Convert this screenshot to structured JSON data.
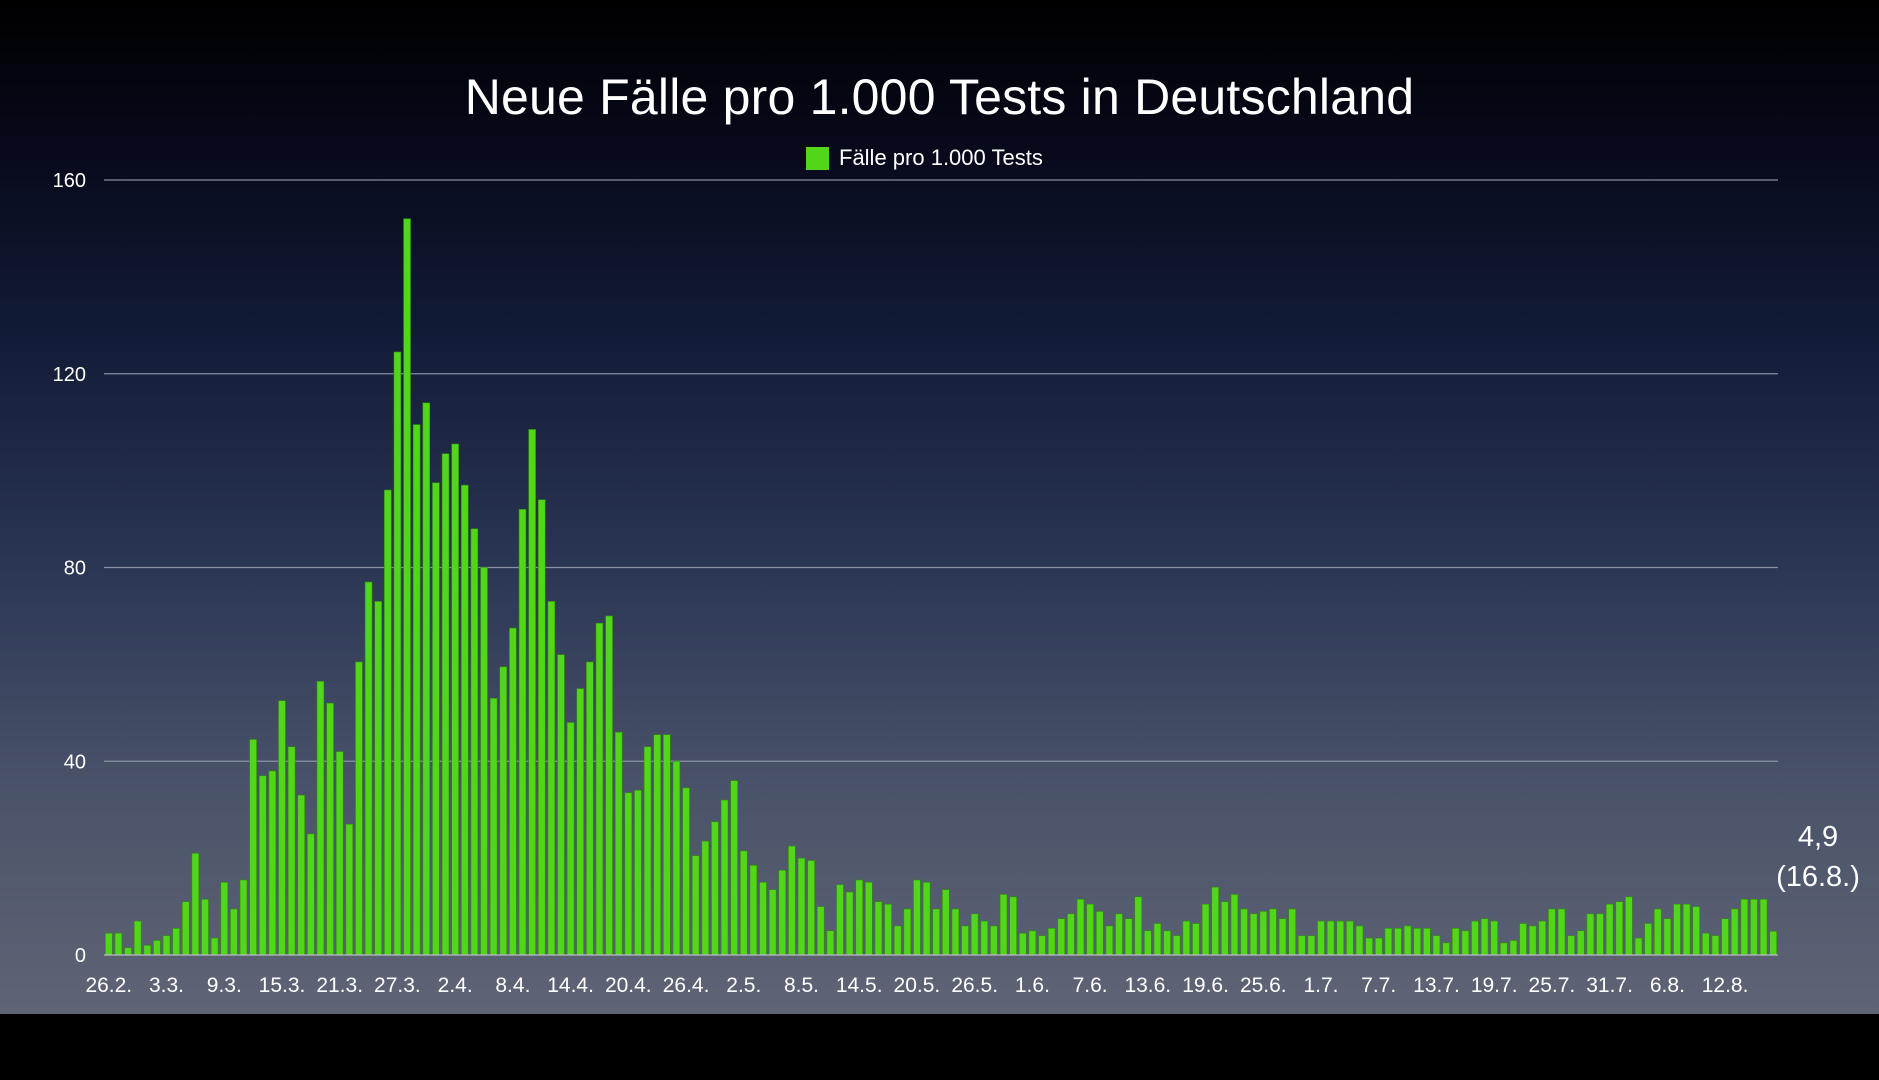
{
  "chart_data": {
    "type": "bar",
    "title": "Neue Fälle pro 1.000 Tests in Deutschland",
    "xlabel": "",
    "ylabel": "",
    "ylim": [
      0,
      160
    ],
    "yticks": [
      "0",
      "40",
      "80",
      "120",
      "160"
    ],
    "grid": true,
    "legend_position": "top-center",
    "bar_color": "#52d619",
    "tick_labels": [
      "26.2.",
      "3.3.",
      "9.3.",
      "15.3.",
      "21.3.",
      "27.3.",
      "2.4.",
      "8.4.",
      "14.4.",
      "20.4.",
      "26.4.",
      "2.5.",
      "8.5.",
      "14.5.",
      "20.5.",
      "26.5.",
      "1.6.",
      "7.6.",
      "13.6.",
      "19.6.",
      "25.6.",
      "1.7.",
      "7.7.",
      "13.7.",
      "19.7.",
      "25.7.",
      "31.7.",
      "6.8.",
      "12.8."
    ],
    "series": [
      {
        "name": "Fälle pro 1.000 Tests",
        "values": [
          4.5,
          4.5,
          1.5,
          7,
          2,
          3,
          4,
          5.5,
          11,
          21,
          11.5,
          3.5,
          15,
          9.5,
          15.5,
          44.5,
          37,
          38,
          52.5,
          43,
          33,
          25,
          56.5,
          52,
          42,
          27,
          60.5,
          77,
          73,
          96,
          124.5,
          152,
          109.5,
          114,
          97.5,
          103.5,
          105.5,
          97,
          88,
          80,
          53,
          59.5,
          67.5,
          92,
          108.5,
          94,
          73,
          62,
          48,
          55,
          60.5,
          68.5,
          70,
          46,
          33.5,
          34,
          43,
          45.5,
          45.5,
          40,
          34.5,
          20.5,
          23.5,
          27.5,
          32,
          36,
          21.5,
          18.5,
          15,
          13.5,
          17.5,
          22.5,
          20,
          19.5,
          10,
          5,
          14.5,
          13,
          15.5,
          15,
          11,
          10.5,
          6,
          9.5,
          15.5,
          15,
          9.5,
          13.5,
          9.5,
          6,
          8.5,
          7,
          6,
          12.5,
          12,
          4.5,
          5,
          4,
          5.5,
          7.5,
          8.5,
          11.5,
          10.5,
          9,
          6,
          8.5,
          7.5,
          12,
          5,
          6.5,
          5,
          4,
          7,
          6.5,
          10.5,
          14,
          11,
          12.5,
          9.5,
          8.5,
          9,
          9.5,
          7.5,
          9.5,
          4,
          4,
          7,
          7,
          7,
          7,
          6,
          3.5,
          3.5,
          5.5,
          5.5,
          6,
          5.5,
          5.5,
          4,
          2.5,
          5.5,
          5,
          7,
          7.5,
          7,
          2.5,
          3,
          6.5,
          6,
          7,
          9.5,
          9.5,
          4,
          5,
          8.5,
          8.5,
          10.5,
          11,
          12,
          3.5,
          6.5,
          9.5,
          7.5,
          10.5,
          10.5,
          10,
          4.5,
          4,
          7.5,
          9.5,
          11.5,
          11.5,
          11.5,
          4.9
        ]
      }
    ],
    "annotation": {
      "value_label": "4,9",
      "date_label": "(16.8.)"
    }
  }
}
